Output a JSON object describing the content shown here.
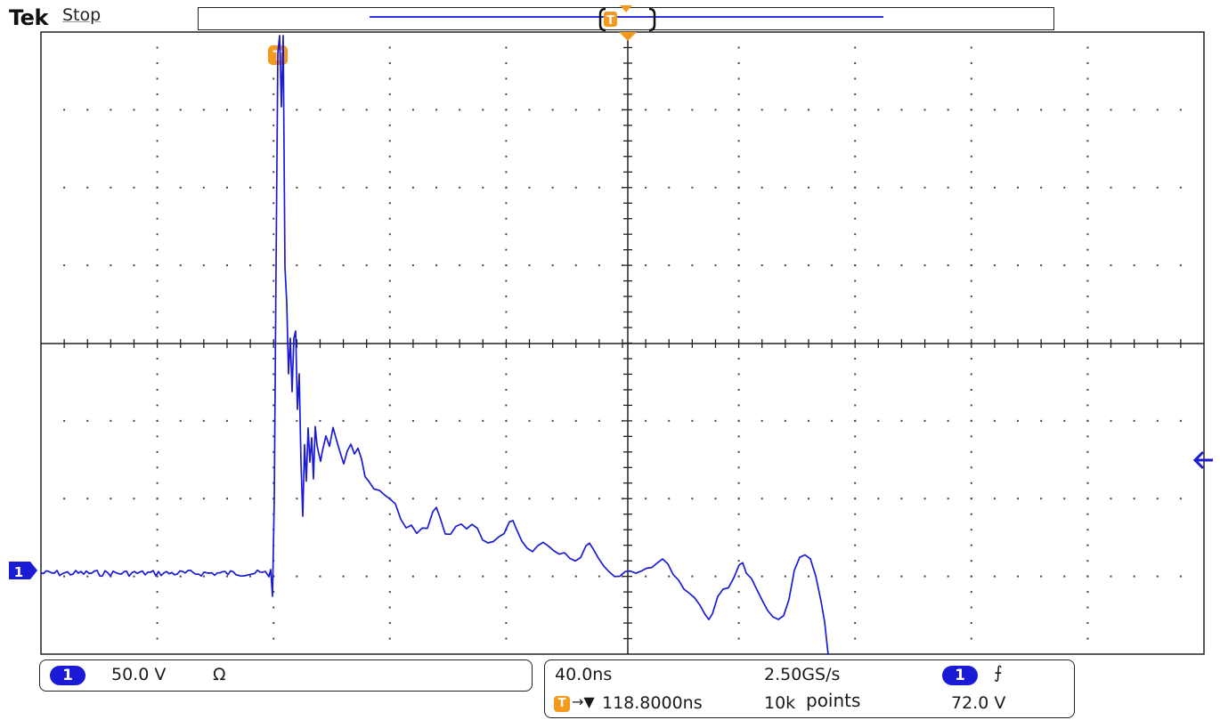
{
  "header": {
    "brand": "Tek",
    "acquisition_status": "Stop",
    "record_view_trigger_label": "T"
  },
  "graticule": {
    "trigger_position_label": "T",
    "channel_marker_label": "1"
  },
  "vertical_panel": {
    "channel": "1",
    "scale": "50.0 V",
    "impedance_symbol": "Ω"
  },
  "horizontal_panel": {
    "time_per_div": "40.0ns",
    "sample_rate": "2.50GS/s",
    "trigger_icon_label": "T",
    "delay_arrow": "→▼",
    "delay": "118.8000ns",
    "record_length_value": "10k",
    "record_length_unit": "points"
  },
  "trigger_panel": {
    "source": "1",
    "slope_symbol": "⨍",
    "level": "72.0 V"
  },
  "colors": {
    "trace": "#1b1bd6",
    "trigger": "#f39a1e",
    "grid": "#222222"
  }
}
